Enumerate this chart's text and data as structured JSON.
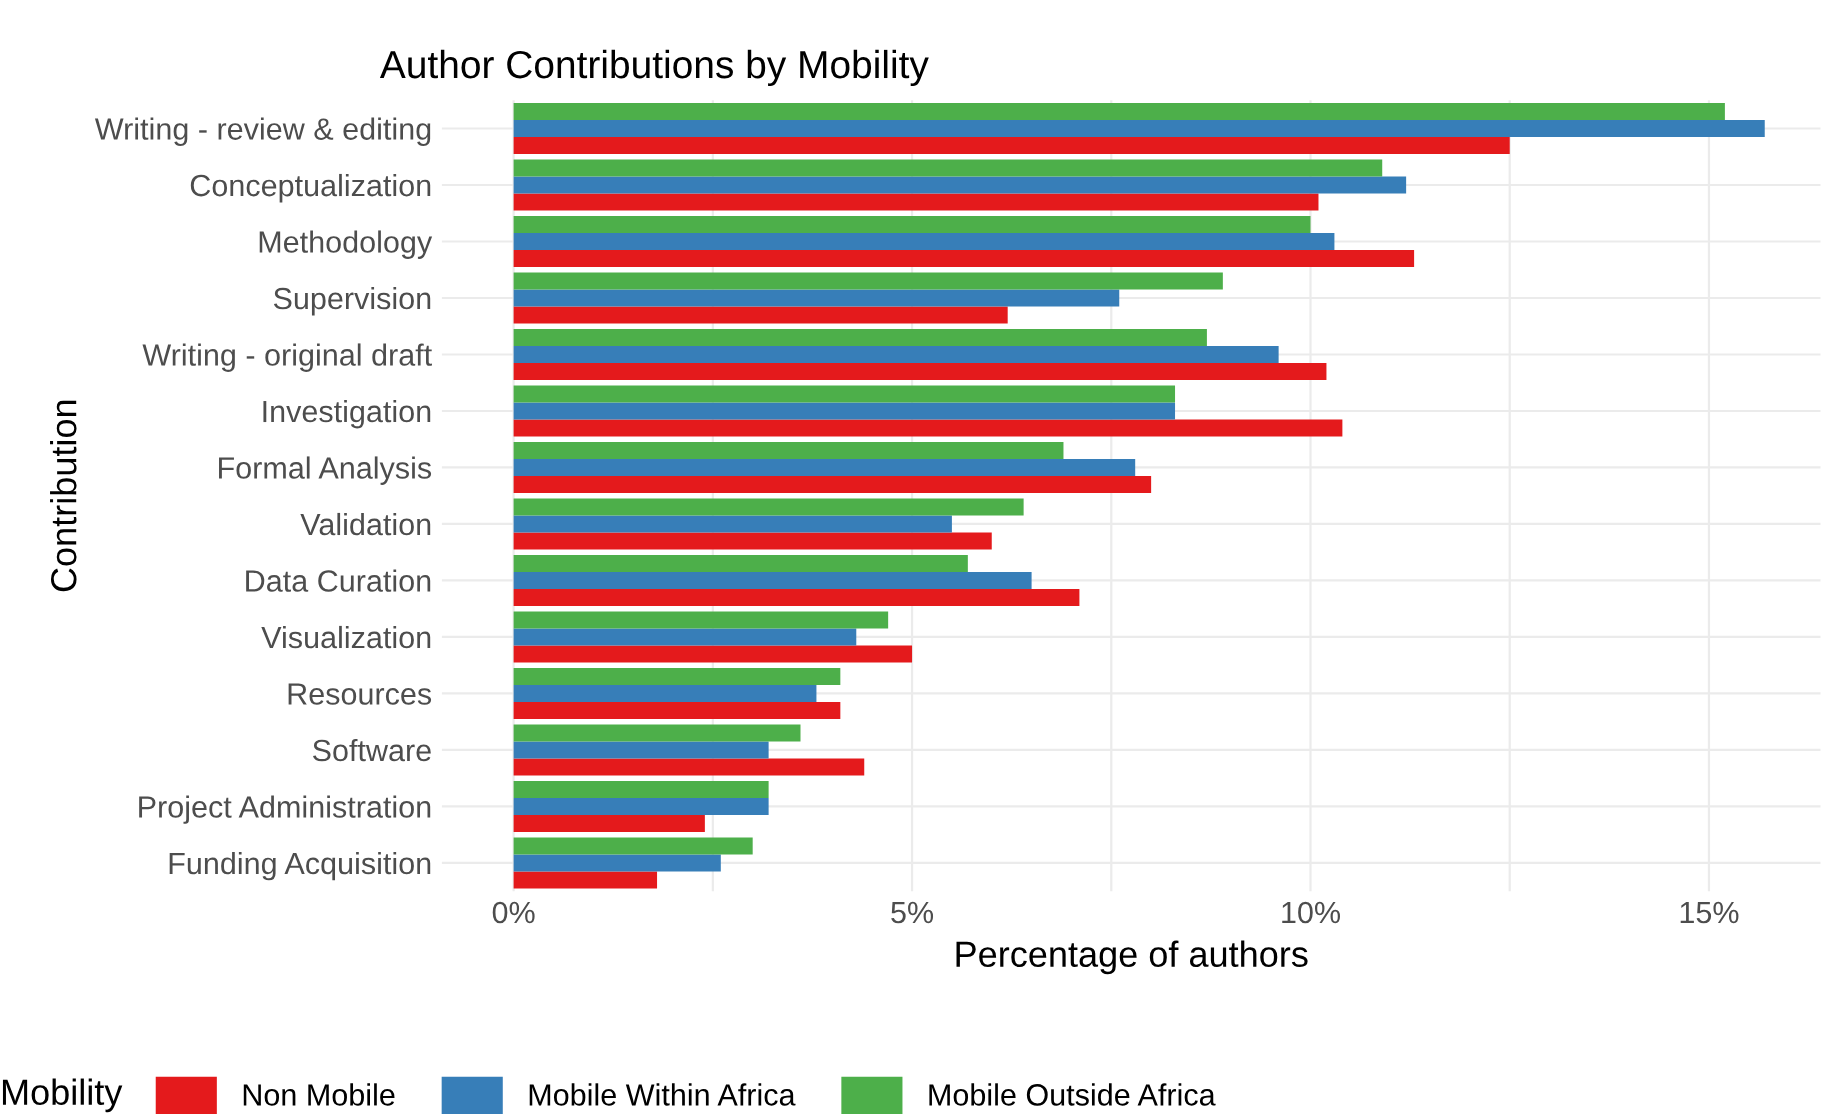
{
  "chart_data": {
    "type": "bar",
    "orientation": "horizontal",
    "title": "Author Contributions by Mobility",
    "xlabel": "Percentage of authors",
    "ylabel": "Contribution",
    "legend_title": "Mobility",
    "legend": "bottom",
    "grid": true,
    "categories": [
      "Writing - review & editing",
      "Conceptualization",
      "Methodology",
      "Supervision",
      "Writing - original draft",
      "Investigation",
      "Formal Analysis",
      "Validation",
      "Data Curation",
      "Visualization",
      "Resources",
      "Software",
      "Project Administration",
      "Funding Acquisition"
    ],
    "series": [
      {
        "name": "Non Mobile",
        "color": "#e41a1c",
        "values": [
          12.5,
          10.1,
          11.3,
          6.2,
          10.2,
          10.4,
          8.0,
          6.0,
          7.1,
          5.0,
          4.1,
          4.4,
          2.4,
          1.8
        ]
      },
      {
        "name": "Mobile Within Africa",
        "color": "#377eb8",
        "values": [
          15.7,
          11.2,
          10.3,
          7.6,
          9.6,
          8.3,
          7.8,
          5.5,
          6.5,
          4.3,
          3.8,
          3.2,
          3.2,
          2.6
        ]
      },
      {
        "name": "Mobile Outside Africa",
        "color": "#4daf4a",
        "values": [
          15.2,
          10.9,
          10.0,
          8.9,
          8.7,
          8.3,
          6.9,
          6.4,
          5.7,
          4.7,
          4.1,
          3.6,
          3.2,
          3.0
        ]
      }
    ],
    "xlim": [
      -0.9,
      16.4
    ],
    "xticks": [
      {
        "value": 0,
        "label": "0%"
      },
      {
        "value": 2.5,
        "label": null
      },
      {
        "value": 5,
        "label": "5%"
      },
      {
        "value": 7.5,
        "label": null
      },
      {
        "value": 10,
        "label": "10%"
      },
      {
        "value": 12.5,
        "label": null
      },
      {
        "value": 15,
        "label": "15%"
      }
    ]
  }
}
